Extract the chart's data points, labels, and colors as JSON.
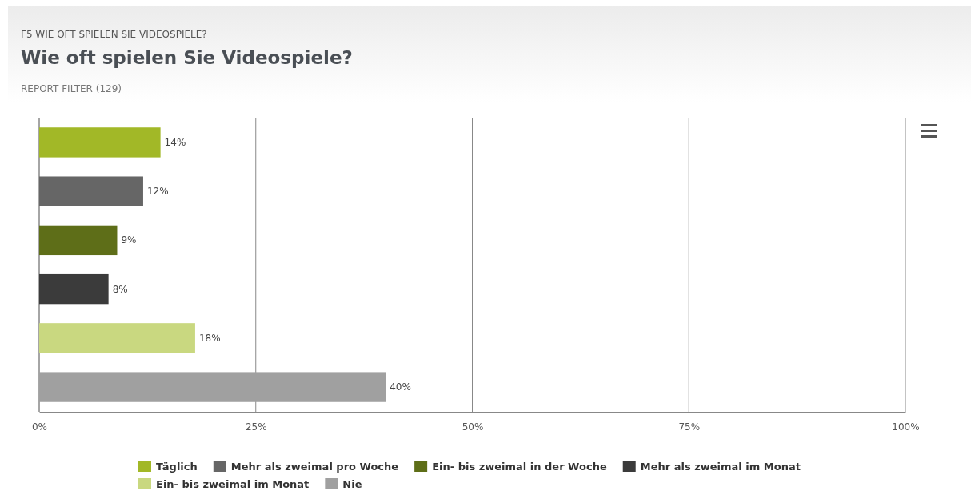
{
  "chart_data": {
    "type": "bar",
    "orientation": "horizontal",
    "title": "Wie oft spielen Sie Videospiele?",
    "subtitle": "REPORT FILTER (129)",
    "annotations": [
      "F5 WIE OFT SPIELEN SIE VIDEOSPIELE?"
    ],
    "categories": [
      null,
      null,
      null,
      null,
      null,
      null
    ],
    "series": [
      {
        "name": "Täglich",
        "color": "#a2b827",
        "values": [
          14,
          null,
          null,
          null,
          null,
          null
        ],
        "value_labels": [
          "14%",
          null,
          null,
          null,
          null,
          null
        ]
      },
      {
        "name": "Mehr als zweimal pro Woche",
        "color": "#666666",
        "values": [
          null,
          12,
          null,
          null,
          null,
          null
        ],
        "value_labels": [
          null,
          "12%",
          null,
          null,
          null,
          null
        ]
      },
      {
        "name": "Ein- bis zweimal in der Woche",
        "color": "#5e6e18",
        "values": [
          null,
          null,
          9,
          null,
          null,
          null
        ],
        "value_labels": [
          null,
          null,
          "9%",
          null,
          null,
          null
        ]
      },
      {
        "name": "Mehr als zweimal im Monat",
        "color": "#3b3b3b",
        "values": [
          null,
          null,
          null,
          8,
          null,
          null
        ],
        "value_labels": [
          null,
          null,
          null,
          "8%",
          null,
          null
        ]
      },
      {
        "name": "Ein- bis zweimal im Monat",
        "color": "#c9d880",
        "values": [
          null,
          null,
          null,
          null,
          18,
          null
        ],
        "value_labels": [
          null,
          null,
          null,
          null,
          "18%",
          null
        ]
      },
      {
        "name": "Nie",
        "color": "#a0a0a0",
        "values": [
          null,
          null,
          null,
          null,
          null,
          40
        ],
        "value_labels": [
          null,
          null,
          null,
          null,
          null,
          "40%"
        ]
      }
    ],
    "xlim": [
      0,
      100
    ],
    "xticks": [
      {
        "value": 0,
        "label": "0%"
      },
      {
        "value": 25,
        "label": "25%"
      },
      {
        "value": 50,
        "label": "50%"
      },
      {
        "value": 75,
        "label": "75%"
      },
      {
        "value": 100,
        "label": "100%"
      }
    ],
    "grid": "x",
    "legend": "bottom"
  }
}
